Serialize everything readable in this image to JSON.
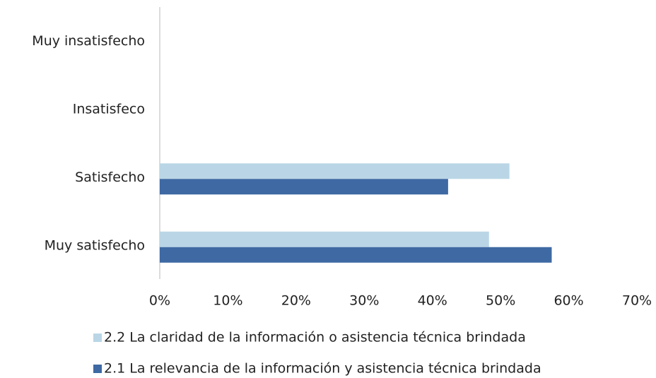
{
  "chart_data": {
    "type": "hbar",
    "categories": [
      "Muy insatisfecho",
      "Insatisfeco",
      "Satisfecho",
      "Muy satisfecho"
    ],
    "series": [
      {
        "name": "2.2 La claridad de la información o asistencia técnica brindada",
        "color": "#bad6e6",
        "values": [
          0,
          0,
          51.3,
          48.3
        ]
      },
      {
        "name": "2.1 La relevancia de la información y asistencia técnica brindada",
        "color": "#3e69a3",
        "values": [
          0,
          0,
          42.3,
          57.5
        ]
      }
    ],
    "xlim": [
      0,
      70
    ],
    "xticks": [
      {
        "value": 0,
        "label": "0%"
      },
      {
        "value": 10,
        "label": "10%"
      },
      {
        "value": 20,
        "label": "20%"
      },
      {
        "value": 30,
        "label": "30%"
      },
      {
        "value": 40,
        "label": "40%"
      },
      {
        "value": 50,
        "label": "50%"
      },
      {
        "value": 60,
        "label": "60%"
      },
      {
        "value": 70,
        "label": "70%"
      }
    ],
    "grid": false,
    "legend": "bottom"
  }
}
